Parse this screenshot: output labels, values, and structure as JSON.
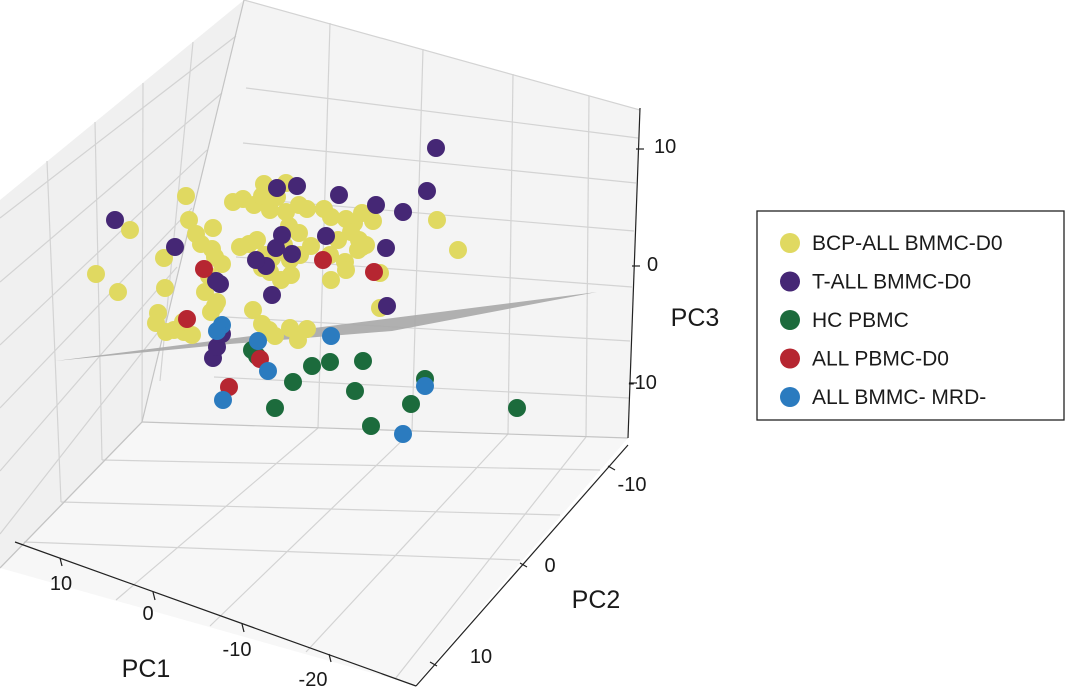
{
  "chart_data": {
    "type": "scatter",
    "projection": "3d",
    "axes": {
      "x": {
        "label": "PC1",
        "ticks": [
          10,
          0,
          -10,
          -20
        ]
      },
      "y": {
        "label": "PC2",
        "ticks": [
          -10,
          0,
          10
        ]
      },
      "z": {
        "label": "PC3",
        "ticks": [
          10,
          0,
          -10
        ]
      }
    },
    "plane": {
      "color": "#a9a9a9",
      "description": "separating plane"
    },
    "series": [
      {
        "name": "BCP-ALL BMMC-D0",
        "color": "#e0d961",
        "points": [
          [
            130,
            230
          ],
          [
            186,
            196
          ],
          [
            233,
            202
          ],
          [
            243,
            199
          ],
          [
            254,
            205
          ],
          [
            262,
            196
          ],
          [
            270,
            210
          ],
          [
            277,
            197
          ],
          [
            286,
            183
          ],
          [
            264,
            184
          ],
          [
            299,
            205
          ],
          [
            307,
            209
          ],
          [
            324,
            209
          ],
          [
            331,
            217
          ],
          [
            346,
            219
          ],
          [
            354,
            223
          ],
          [
            362,
            213
          ],
          [
            373,
            221
          ],
          [
            359,
            240
          ],
          [
            366,
            245
          ],
          [
            351,
            232
          ],
          [
            338,
            240
          ],
          [
            330,
            255
          ],
          [
            345,
            262
          ],
          [
            331,
            280
          ],
          [
            346,
            270
          ],
          [
            358,
            250
          ],
          [
            96,
            274
          ],
          [
            118,
            292
          ],
          [
            164,
            258
          ],
          [
            165,
            288
          ],
          [
            196,
            234
          ],
          [
            189,
            220
          ],
          [
            201,
            244
          ],
          [
            213,
            228
          ],
          [
            212,
            249
          ],
          [
            240,
            247
          ],
          [
            249,
            244
          ],
          [
            257,
            240
          ],
          [
            265,
            255
          ],
          [
            272,
            258
          ],
          [
            277,
            251
          ],
          [
            284,
            245
          ],
          [
            290,
            260
          ],
          [
            300,
            255
          ],
          [
            311,
            246
          ],
          [
            299,
            233
          ],
          [
            289,
            226
          ],
          [
            286,
            212
          ],
          [
            215,
            257
          ],
          [
            222,
            264
          ],
          [
            209,
            276
          ],
          [
            205,
            292
          ],
          [
            215,
            306
          ],
          [
            211,
            312
          ],
          [
            217,
            302
          ],
          [
            158,
            313
          ],
          [
            166,
            332
          ],
          [
            174,
            330
          ],
          [
            184,
            332
          ],
          [
            253,
            310
          ],
          [
            262,
            324
          ],
          [
            275,
            336
          ],
          [
            269,
            330
          ],
          [
            290,
            328
          ],
          [
            298,
            340
          ],
          [
            307,
            329
          ],
          [
            291,
            275
          ],
          [
            281,
            280
          ],
          [
            270,
            272
          ],
          [
            262,
            268
          ],
          [
            380,
            273
          ],
          [
            380,
            308
          ],
          [
            437,
            220
          ],
          [
            458,
            250
          ],
          [
            362,
            247
          ],
          [
            156,
            323
          ],
          [
            183,
            322
          ],
          [
            192,
            335
          ]
        ]
      },
      {
        "name": "T-ALL BMMC-D0",
        "color": "#452775",
        "points": [
          [
            115,
            220
          ],
          [
            175,
            247
          ],
          [
            277,
            188
          ],
          [
            297,
            186
          ],
          [
            339,
            195
          ],
          [
            376,
            205
          ],
          [
            403,
            212
          ],
          [
            427,
            191
          ],
          [
            436,
            148
          ],
          [
            386,
            248
          ],
          [
            387,
            306
          ],
          [
            326,
            236
          ],
          [
            282,
            235
          ],
          [
            276,
            248
          ],
          [
            266,
            266
          ],
          [
            256,
            260
          ],
          [
            292,
            254
          ],
          [
            272,
            295
          ],
          [
            220,
            284
          ],
          [
            216,
            281
          ],
          [
            213,
            358
          ],
          [
            217,
            347
          ],
          [
            222,
            334
          ]
        ]
      },
      {
        "name": "HC PBMC",
        "color": "#1c6b3c",
        "points": [
          [
            252,
            350
          ],
          [
            257,
            356
          ],
          [
            312,
            366
          ],
          [
            330,
            362
          ],
          [
            363,
            361
          ],
          [
            293,
            382
          ],
          [
            355,
            391
          ],
          [
            411,
            404
          ],
          [
            425,
            379
          ],
          [
            371,
            426
          ],
          [
            275,
            408
          ],
          [
            517,
            408
          ]
        ]
      },
      {
        "name": "ALL PBMC-D0",
        "color": "#b62631",
        "points": [
          [
            204,
            269
          ],
          [
            323,
            260
          ],
          [
            374,
            272
          ],
          [
            187,
            319
          ],
          [
            260,
            359
          ],
          [
            229,
            387
          ]
        ]
      },
      {
        "name": "ALL BMMC- MRD-",
        "color": "#2b7bbf",
        "points": [
          [
            222,
            325
          ],
          [
            217,
            331
          ],
          [
            331,
            336
          ],
          [
            258,
            341
          ],
          [
            268,
            371
          ],
          [
            223,
            400
          ],
          [
            425,
            386
          ],
          [
            403,
            434
          ]
        ]
      }
    ]
  }
}
